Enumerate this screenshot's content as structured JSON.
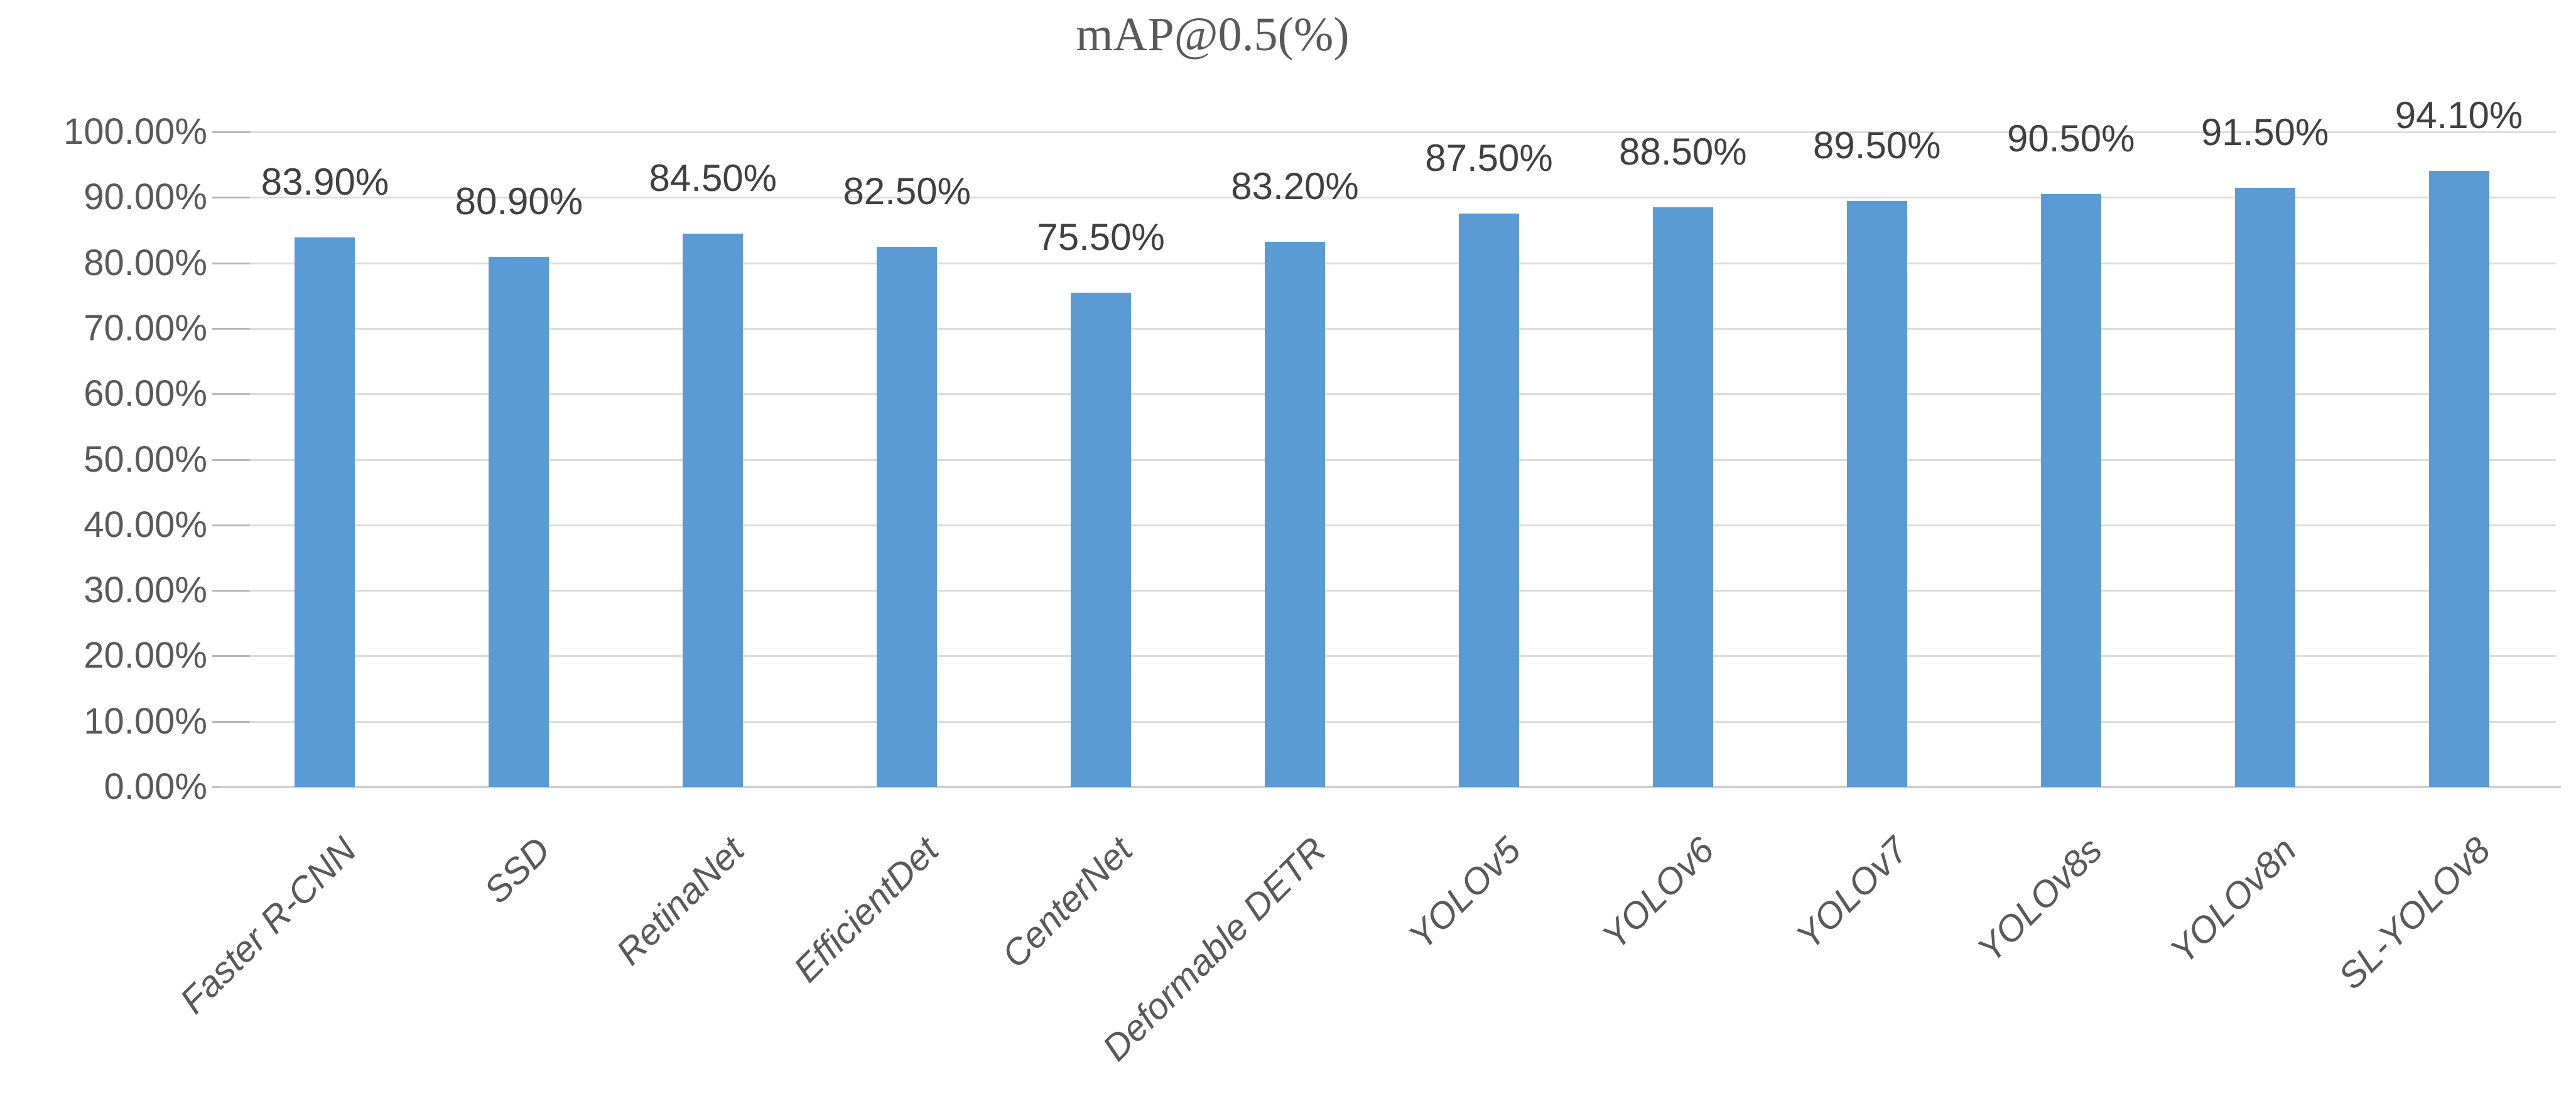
{
  "title": "mAP@0.5(%)",
  "chart_data": {
    "type": "bar",
    "title": "mAP@0.5(%)",
    "categories": [
      "Faster R-CNN",
      "SSD",
      "RetinaNet",
      "EfficientDet",
      "CenterNet",
      "Deformable DETR",
      "YOLOv5",
      "YOLOv6",
      "YOLOv7",
      "YOLOv8s",
      "YOLOv8n",
      "SL-YOLOv8"
    ],
    "values": [
      83.9,
      80.9,
      84.5,
      82.5,
      75.5,
      83.2,
      87.5,
      88.5,
      89.5,
      90.5,
      91.5,
      94.1
    ],
    "value_labels": [
      "83.90%",
      "80.90%",
      "84.50%",
      "82.50%",
      "75.50%",
      "83.20%",
      "87.50%",
      "88.50%",
      "89.50%",
      "90.50%",
      "91.50%",
      "94.10%"
    ],
    "xlabel": "",
    "ylabel": "",
    "ylim": [
      0,
      100
    ],
    "ytick_step": 10,
    "ytick_labels": [
      "0.00%",
      "10.00%",
      "20.00%",
      "30.00%",
      "40.00%",
      "50.00%",
      "60.00%",
      "70.00%",
      "80.00%",
      "90.00%",
      "100.00%"
    ],
    "grid": true,
    "legend_position": "none",
    "bar_color": "#5b9bd5",
    "gridline_color": "#dcdcdc",
    "axis_line_color": "#d0cece",
    "tick_color": "#b8b8b8",
    "title_color": "#595959",
    "axis_label_color": "#595959",
    "value_label_color": "#404040"
  }
}
